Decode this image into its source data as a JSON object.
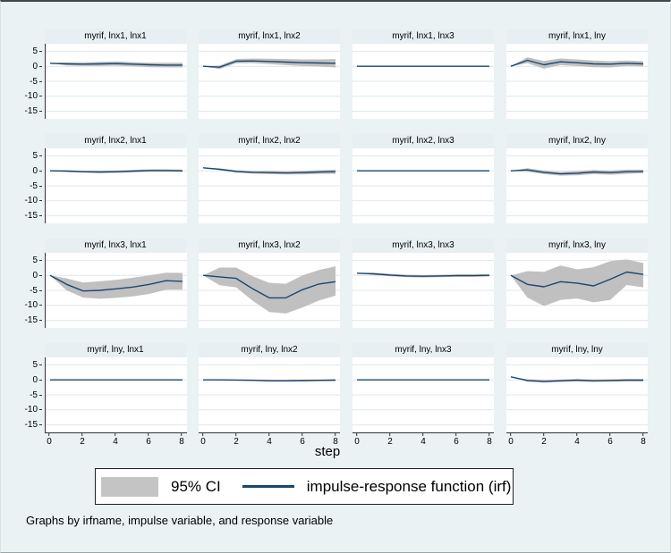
{
  "chart_data": {
    "type": "area",
    "description": "4x4 grid of impulse-response function plots with 95% CI bands",
    "x": [
      0,
      1,
      2,
      3,
      4,
      5,
      6,
      7,
      8
    ],
    "xticks": [
      0,
      2,
      4,
      6,
      8
    ],
    "yticks": [
      5,
      0,
      -5,
      -10,
      -15
    ],
    "ylim": [
      -17.5,
      7.5
    ],
    "xlim": [
      0,
      8
    ],
    "xlabel": "step",
    "note": "Graphs by irfname, impulse variable, and response variable",
    "legend": {
      "ci_label": "95% CI",
      "irf_label": "impulse-response function (irf)"
    },
    "colors": {
      "irf_line": "#1a476f",
      "ci_fill": "#c0c0c0",
      "background": "#eaf2f3",
      "plot_bg": "#ffffff",
      "grid": "#dde7ec"
    },
    "panels": [
      {
        "title": "myrif, lnx1, lnx1",
        "irf": [
          1,
          0.8,
          0.7,
          0.8,
          0.9,
          0.7,
          0.5,
          0.4,
          0.4
        ],
        "ci_upper": [
          1,
          1.3,
          1.3,
          1.5,
          1.6,
          1.4,
          1.2,
          1.2,
          1.2
        ],
        "ci_lower": [
          1,
          0.3,
          0.1,
          0.1,
          0.2,
          0.0,
          -0.3,
          -0.4,
          -0.4
        ]
      },
      {
        "title": "myrif, lnx1, lnx2",
        "irf": [
          0,
          -0.3,
          1.7,
          1.8,
          1.6,
          1.4,
          1.2,
          1.1,
          1.0
        ],
        "ci_upper": [
          0,
          0.3,
          2.4,
          2.6,
          2.5,
          2.4,
          2.3,
          2.3,
          2.4
        ],
        "ci_lower": [
          0,
          -0.9,
          1.0,
          1.0,
          0.7,
          0.4,
          0.1,
          -0.1,
          -0.4
        ]
      },
      {
        "title": "myrif, lnx1, lnx3",
        "irf": [
          0,
          0,
          0,
          0,
          0,
          0,
          0,
          0,
          0
        ],
        "ci_upper": [
          0,
          0.08,
          0.08,
          0.08,
          0.08,
          0.08,
          0.08,
          0.08,
          0.08
        ],
        "ci_lower": [
          0,
          -0.08,
          -0.08,
          -0.08,
          -0.08,
          -0.08,
          -0.08,
          -0.08,
          -0.08
        ]
      },
      {
        "title": "myrif, lnx1, lny",
        "irf": [
          0,
          2.0,
          0.5,
          1.5,
          1.2,
          0.8,
          0.7,
          1.0,
          0.8
        ],
        "ci_upper": [
          0,
          3.0,
          1.8,
          2.6,
          2.3,
          1.9,
          1.7,
          1.9,
          1.7
        ],
        "ci_lower": [
          0,
          1.0,
          -0.8,
          0.4,
          0.1,
          -0.3,
          -0.4,
          0.1,
          -0.1
        ]
      },
      {
        "title": "myrif, lnx2, lnx1",
        "irf": [
          0,
          -0.1,
          -0.3,
          -0.4,
          -0.3,
          -0.1,
          0.1,
          0.1,
          0.0
        ],
        "ci_upper": [
          0,
          0.2,
          0.0,
          0.0,
          0.1,
          0.3,
          0.5,
          0.5,
          0.4
        ],
        "ci_lower": [
          0,
          -0.4,
          -0.6,
          -0.8,
          -0.7,
          -0.5,
          -0.3,
          -0.3,
          -0.4
        ]
      },
      {
        "title": "myrif, lnx2, lnx2",
        "irf": [
          1,
          0.5,
          -0.2,
          -0.5,
          -0.6,
          -0.7,
          -0.6,
          -0.4,
          -0.3
        ],
        "ci_upper": [
          1,
          0.8,
          0.2,
          -0.1,
          -0.1,
          -0.2,
          0.0,
          0.2,
          0.4
        ],
        "ci_lower": [
          1,
          0.2,
          -0.6,
          -0.9,
          -1.1,
          -1.2,
          -1.2,
          -1.0,
          -1.0
        ]
      },
      {
        "title": "myrif, lnx2, lnx3",
        "irf": [
          0,
          0,
          0,
          0,
          0,
          0,
          0,
          0,
          0
        ],
        "ci_upper": [
          0,
          0.08,
          0.08,
          0.08,
          0.08,
          0.08,
          0.08,
          0.08,
          0.08
        ],
        "ci_lower": [
          0,
          -0.08,
          -0.08,
          -0.08,
          -0.08,
          -0.08,
          -0.08,
          -0.08,
          -0.08
        ]
      },
      {
        "title": "myrif, lnx2, lny",
        "irf": [
          0,
          0.3,
          -0.5,
          -1.0,
          -0.8,
          -0.4,
          -0.6,
          -0.3,
          -0.2
        ],
        "ci_upper": [
          0,
          0.9,
          0.1,
          -0.4,
          -0.1,
          0.3,
          0.1,
          0.4,
          0.4
        ],
        "ci_lower": [
          0,
          -0.3,
          -1.1,
          -1.6,
          -1.5,
          -1.1,
          -1.3,
          -1.0,
          -0.8
        ]
      },
      {
        "title": "myrif, lnx3, lnx1",
        "irf": [
          0,
          -3.0,
          -5.2,
          -5.0,
          -4.5,
          -3.9,
          -3.0,
          -1.8,
          -2.0
        ],
        "ci_upper": [
          0,
          -1.0,
          -2.4,
          -2.0,
          -1.5,
          -0.8,
          0.0,
          0.9,
          0.8
        ],
        "ci_lower": [
          0,
          -5.0,
          -7.4,
          -7.8,
          -7.5,
          -7.0,
          -6.2,
          -4.8,
          -4.8
        ]
      },
      {
        "title": "myrif, lnx3, lnx2",
        "irf": [
          0,
          -0.5,
          -1.0,
          -4.5,
          -7.5,
          -7.5,
          -4.8,
          -2.9,
          -2.1
        ],
        "ci_upper": [
          0,
          2.6,
          2.6,
          -0.3,
          -2.5,
          -2.8,
          0.0,
          1.8,
          3.0
        ],
        "ci_lower": [
          0,
          -3.3,
          -4.0,
          -8.5,
          -12.2,
          -12.7,
          -10.7,
          -8.4,
          -6.8
        ]
      },
      {
        "title": "myrif, lnx3, lnx3",
        "irf": [
          0.7,
          0.5,
          0.1,
          -0.2,
          -0.3,
          -0.2,
          -0.1,
          -0.1,
          0.0
        ],
        "ci_upper": [
          0.7,
          0.9,
          0.5,
          0.2,
          0.1,
          0.2,
          0.3,
          0.3,
          0.4
        ],
        "ci_lower": [
          0.7,
          0.1,
          -0.3,
          -0.6,
          -0.7,
          -0.6,
          -0.5,
          -0.5,
          -0.4
        ]
      },
      {
        "title": "myrif, lnx3, lny",
        "irf": [
          0,
          -3.0,
          -3.8,
          -2.1,
          -2.6,
          -3.5,
          -1.3,
          1.1,
          0.3
        ],
        "ci_upper": [
          0,
          1.4,
          1.2,
          3.3,
          2.0,
          2.7,
          4.7,
          5.3,
          4.1
        ],
        "ci_lower": [
          0,
          -7.4,
          -10.2,
          -8.2,
          -7.7,
          -9.0,
          -8.2,
          -3.2,
          -4.0
        ]
      },
      {
        "title": "myrif, lny, lnx1",
        "irf": [
          0,
          0,
          0,
          0,
          0,
          0,
          0,
          0,
          0
        ],
        "ci_upper": [
          0,
          0.06,
          0.06,
          0.06,
          0.06,
          0.06,
          0.06,
          0.06,
          0.06
        ],
        "ci_lower": [
          0,
          -0.06,
          -0.06,
          -0.06,
          -0.06,
          -0.06,
          -0.06,
          -0.06,
          -0.06
        ]
      },
      {
        "title": "myrif, lny, lnx2",
        "irf": [
          0,
          0.0,
          -0.05,
          -0.15,
          -0.3,
          -0.3,
          -0.25,
          -0.15,
          -0.1
        ],
        "ci_upper": [
          0,
          0.15,
          0.15,
          0.1,
          0.0,
          0.0,
          0.05,
          0.15,
          0.2
        ],
        "ci_lower": [
          0,
          -0.15,
          -0.25,
          -0.4,
          -0.6,
          -0.6,
          -0.55,
          -0.45,
          -0.4
        ]
      },
      {
        "title": "myrif, lny, lnx3",
        "irf": [
          0,
          0,
          0,
          0,
          0,
          0,
          0,
          0,
          0
        ],
        "ci_upper": [
          0,
          0.06,
          0.06,
          0.06,
          0.06,
          0.06,
          0.06,
          0.06,
          0.06
        ],
        "ci_lower": [
          0,
          -0.06,
          -0.06,
          -0.06,
          -0.06,
          -0.06,
          -0.06,
          -0.06,
          -0.06
        ]
      },
      {
        "title": "myrif, lny, lny",
        "irf": [
          1,
          -0.2,
          -0.5,
          -0.3,
          -0.1,
          -0.3,
          -0.2,
          -0.1,
          -0.1
        ],
        "ci_upper": [
          1,
          0.2,
          -0.1,
          0.1,
          0.3,
          0.1,
          0.2,
          0.3,
          0.3
        ],
        "ci_lower": [
          1,
          -0.6,
          -0.9,
          -0.7,
          -0.5,
          -0.7,
          -0.6,
          -0.5,
          -0.5
        ]
      }
    ]
  }
}
